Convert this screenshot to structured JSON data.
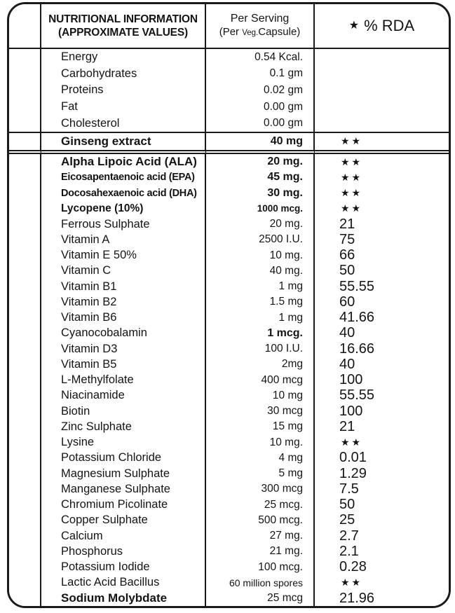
{
  "colors": {
    "border": "#1a1a1a",
    "text": "#141414",
    "background": "#ffffff"
  },
  "header": {
    "info_line1": "NUTRITIONAL INFORMATION",
    "info_line2": "(APPROXIMATE VALUES)",
    "serving_line1": "Per Serving",
    "serving_line2_pre": "(Per ",
    "serving_line2_small": "Veg.",
    "serving_line2_post": "Capsule)",
    "rda_star": "★",
    "rda_label": "% RDA"
  },
  "rows": [
    {
      "section": "basic",
      "name": "Energy",
      "value": "0.54 Kcal.",
      "rda": ""
    },
    {
      "section": "basic",
      "name": "Carbohydrates",
      "value": "0.1 gm",
      "rda": ""
    },
    {
      "section": "basic",
      "name": "Proteins",
      "value": "0.02 gm",
      "rda": ""
    },
    {
      "section": "basic",
      "name": "Fat",
      "value": "0.00 gm",
      "rda": ""
    },
    {
      "section": "basic",
      "name": "Cholesterol",
      "value": "0.00 gm",
      "rda": ""
    },
    {
      "section": "ginseng",
      "name": "Ginseng extract",
      "value": "40 mg",
      "rda": "★★",
      "flags": [
        "nb",
        "vb"
      ]
    },
    {
      "section": "main",
      "name": "Alpha Lipoic Acid (ALA)",
      "value": "20 mg.",
      "rda": "★★",
      "flags": [
        "nb",
        "vb"
      ]
    },
    {
      "section": "main",
      "name": "Eicosapentaenoic acid (EPA)",
      "value": "45 mg.",
      "rda": "★★",
      "flags": [
        "nbc",
        "vb"
      ]
    },
    {
      "section": "main",
      "name": "Docosahexaenoic acid (DHA)",
      "value": "30 mg.",
      "rda": "★★",
      "flags": [
        "nbc",
        "vb"
      ]
    },
    {
      "section": "main",
      "name": "Lycopene (10%)",
      "value": "1000 mcg.",
      "rda": "★★",
      "flags": [
        "nbs",
        "vbs"
      ]
    },
    {
      "section": "main",
      "name": "Ferrous Sulphate",
      "value": "20 mg.",
      "rda": "21"
    },
    {
      "section": "main",
      "name": "Vitamin A",
      "value": "2500 I.U.",
      "rda": "75"
    },
    {
      "section": "main",
      "name": "Vitamin E 50%",
      "value": "10 mg.",
      "rda": "66"
    },
    {
      "section": "main",
      "name": "Vitamin C",
      "value": "40 mg.",
      "rda": "50"
    },
    {
      "section": "main",
      "name": "Vitamin B1",
      "value": "1 mg",
      "rda": "55.55"
    },
    {
      "section": "main",
      "name": "Vitamin B2",
      "value": "1.5 mg",
      "rda": "60"
    },
    {
      "section": "main",
      "name": "Vitamin B6",
      "value": "1 mg",
      "rda": "41.66"
    },
    {
      "section": "main",
      "name": "Cyanocobalamin",
      "value": "1 mcg.",
      "rda": "40",
      "flags": [
        "vb"
      ]
    },
    {
      "section": "main",
      "name": "Vitamin D3",
      "value": "100 I.U.",
      "rda": "16.66"
    },
    {
      "section": "main",
      "name": "Vitamin B5",
      "value": "2mg",
      "rda": "40"
    },
    {
      "section": "main",
      "name": "L-Methylfolate",
      "value": "400 mcg",
      "rda": "100"
    },
    {
      "section": "main",
      "name": "Niacinamide",
      "value": "10 mg",
      "rda": "55.55"
    },
    {
      "section": "main",
      "name": "Biotin",
      "value": "30 mcg",
      "rda": "100"
    },
    {
      "section": "main",
      "name": "Zinc Sulphate",
      "value": "15 mg",
      "rda": "21"
    },
    {
      "section": "main",
      "name": "Lysine",
      "value": "10 mg.",
      "rda": "★★"
    },
    {
      "section": "main",
      "name": "Potassium Chloride",
      "value": "4 mg",
      "rda": "0.01"
    },
    {
      "section": "main",
      "name": "Magnesium Sulphate",
      "value": "5 mg",
      "rda": "1.29"
    },
    {
      "section": "main",
      "name": "Manganese Sulphate",
      "value": "300 mcg",
      "rda": "7.5"
    },
    {
      "section": "main",
      "name": "Chromium Picolinate",
      "value": "25 mcg.",
      "rda": "50"
    },
    {
      "section": "main",
      "name": "Copper Sulphate",
      "value": "500 mcg.",
      "rda": "25"
    },
    {
      "section": "main",
      "name": "Calcium",
      "value": "27 mg.",
      "rda": "2.7"
    },
    {
      "section": "main",
      "name": "Phosphorus",
      "value": "21 mg.",
      "rda": "2.1"
    },
    {
      "section": "main",
      "name": "Potassium Iodide",
      "value": "100 mcg.",
      "rda": "0.28"
    },
    {
      "section": "main",
      "name": "Lactic Acid Bacillus",
      "value": "60 million spores",
      "rda": "★★",
      "flags": [
        "vsm"
      ]
    },
    {
      "section": "main",
      "name": "Sodium Molybdate",
      "value": "25 mcg",
      "rda": "21.96",
      "flags": [
        "nb"
      ]
    }
  ]
}
